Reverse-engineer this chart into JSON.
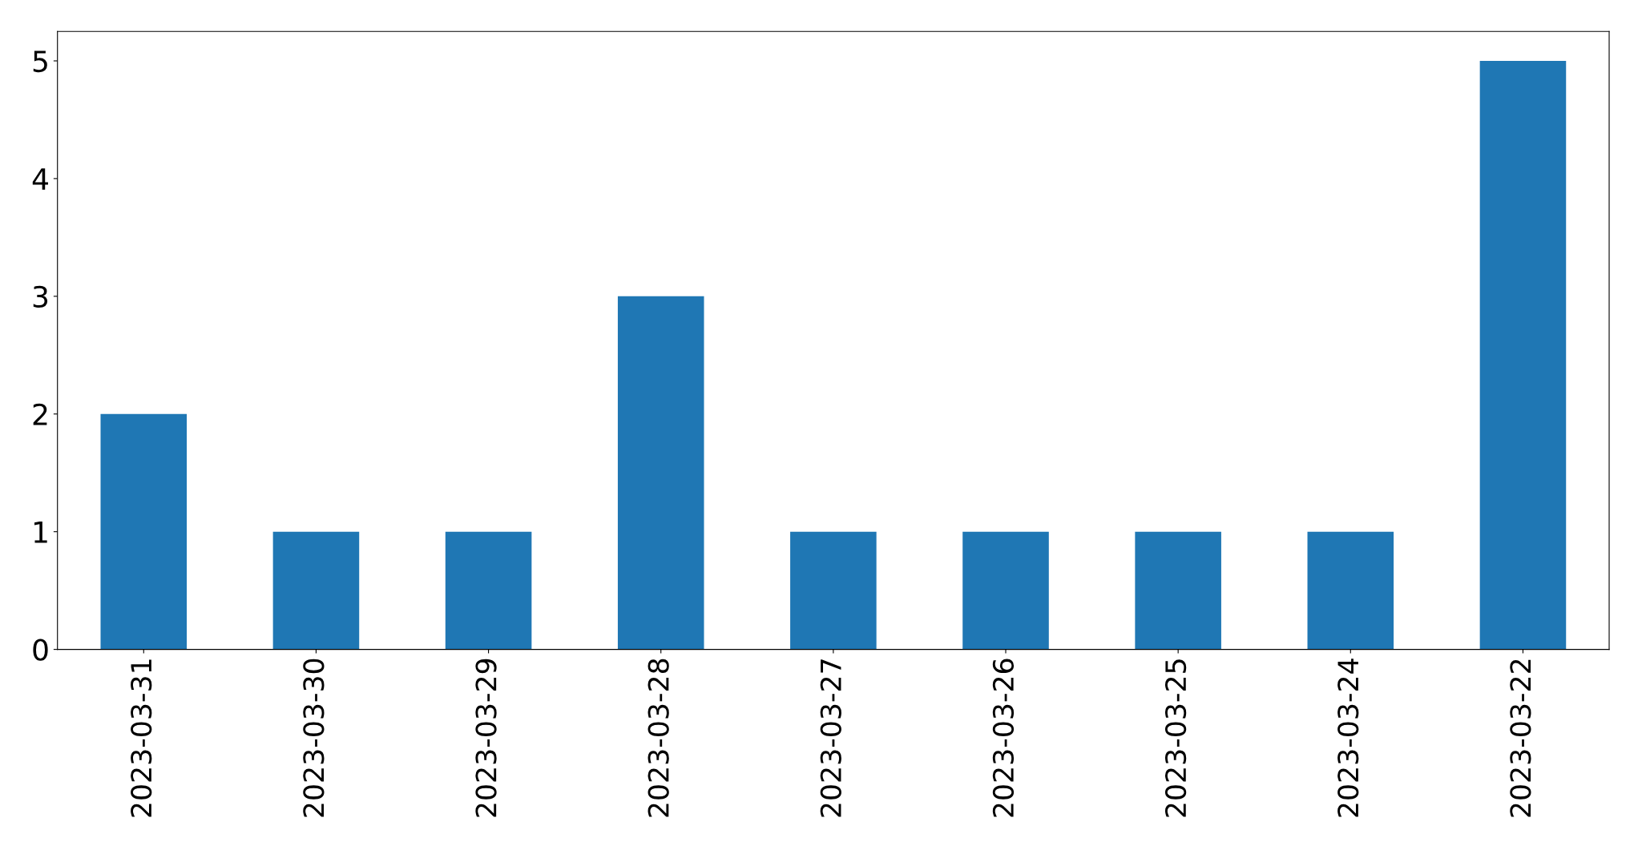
{
  "chart_data": {
    "type": "bar",
    "categories": [
      "2023-03-31",
      "2023-03-30",
      "2023-03-29",
      "2023-03-28",
      "2023-03-27",
      "2023-03-26",
      "2023-03-25",
      "2023-03-24",
      "2023-03-22"
    ],
    "values": [
      2,
      1,
      1,
      3,
      1,
      1,
      1,
      1,
      5
    ],
    "color": "#1f77b4",
    "ylim": [
      0,
      5.25
    ],
    "yticks": [
      0,
      1,
      2,
      3,
      4,
      5
    ],
    "grid": false
  }
}
